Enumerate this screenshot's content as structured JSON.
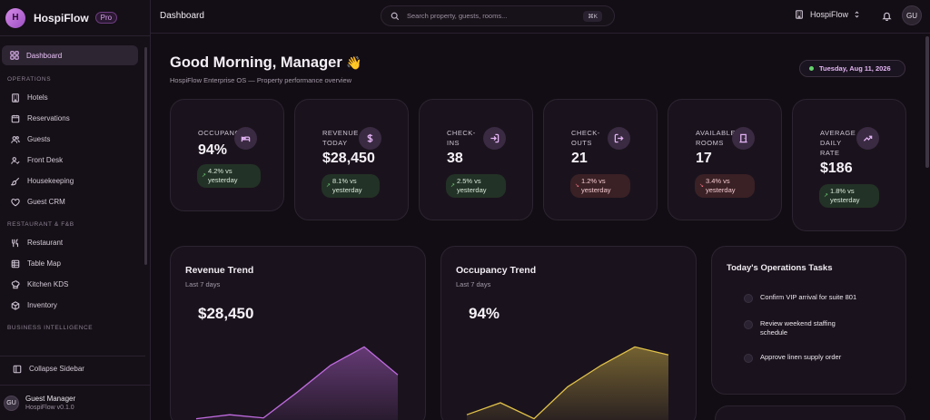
{
  "brand": {
    "logo_letter": "H",
    "name": "HospiFlow",
    "badge": "Pro"
  },
  "sidebar": {
    "active": {
      "label": "Dashboard",
      "icon": "grid-icon"
    },
    "sections": [
      {
        "title": "OPERATIONS",
        "items": [
          {
            "label": "Hotels",
            "icon": "building-icon"
          },
          {
            "label": "Reservations",
            "icon": "calendar-icon"
          },
          {
            "label": "Guests",
            "icon": "users-icon"
          },
          {
            "label": "Front Desk",
            "icon": "user-check-icon"
          },
          {
            "label": "Housekeeping",
            "icon": "brush-icon"
          },
          {
            "label": "Guest CRM",
            "icon": "heart-icon"
          }
        ]
      },
      {
        "title": "RESTAURANT & F&B",
        "items": [
          {
            "label": "Restaurant",
            "icon": "utensils-icon"
          },
          {
            "label": "Table Map",
            "icon": "table-icon"
          },
          {
            "label": "Kitchen KDS",
            "icon": "chef-hat-icon"
          },
          {
            "label": "Inventory",
            "icon": "box-icon"
          }
        ]
      },
      {
        "title": "BUSINESS INTELLIGENCE",
        "items": []
      }
    ],
    "collapse_label": "Collapse Sidebar",
    "user": {
      "initials": "GU",
      "name": "Guest Manager",
      "version": "HospiFlow v0.1.0"
    }
  },
  "topbar": {
    "title": "Dashboard",
    "search_placeholder": "Search property, guests, rooms...",
    "shortcut": "⌘K",
    "property": "HospiFlow",
    "avatar": "GU"
  },
  "header": {
    "greeting": "Good Morning, Manager",
    "greeting_emoji": "👋",
    "subtitle": "HospiFlow Enterprise OS — Property performance overview",
    "date": "Tuesday, Aug 11, 2026"
  },
  "kpis": [
    {
      "label": "OCCUPANCY",
      "value": "94%",
      "trend": "4.2% vs yesterday",
      "direction": "up",
      "icon": "bed-icon"
    },
    {
      "label": "REVENUE TODAY",
      "value": "$28,450",
      "trend": "8.1% vs yesterday",
      "direction": "up",
      "icon": "dollar-icon"
    },
    {
      "label": "CHECK-INS",
      "value": "38",
      "trend": "2.5% vs yesterday",
      "direction": "up",
      "icon": "login-icon"
    },
    {
      "label": "CHECK-OUTS",
      "value": "21",
      "trend": "1.2% vs yesterday",
      "direction": "down",
      "icon": "logout-icon"
    },
    {
      "label": "AVAILABLE ROOMS",
      "value": "17",
      "trend": "3.4% vs yesterday",
      "direction": "down",
      "icon": "door-icon"
    },
    {
      "label": "AVERAGE DAILY RATE",
      "value": "$186",
      "trend": "1.8% vs yesterday",
      "direction": "up",
      "icon": "trending-up-icon"
    }
  ],
  "revenue_trend": {
    "title": "Revenue Trend",
    "subtitle": "Last 7 days",
    "value": "$28,450",
    "color": "#c06be0"
  },
  "occupancy_trend": {
    "title": "Occupancy Trend",
    "subtitle": "Last 7 days",
    "value": "94%",
    "color": "#e2c24a"
  },
  "tasks": {
    "title": "Today's Operations Tasks",
    "items": [
      "Confirm VIP arrival for suite 801",
      "Review weekend staffing schedule",
      "Approve linen supply order"
    ]
  },
  "chart_data": [
    {
      "type": "area",
      "title": "Revenue Trend",
      "x": [
        1,
        2,
        3,
        4,
        5,
        6,
        7
      ],
      "values": [
        0.05,
        0.1,
        0.06,
        0.38,
        0.72,
        0.95,
        0.6
      ],
      "note_scale": "relative"
    },
    {
      "type": "area",
      "title": "Occupancy Trend",
      "x": [
        1,
        2,
        3,
        4,
        5,
        6,
        7
      ],
      "values": [
        0.1,
        0.25,
        0.05,
        0.45,
        0.72,
        0.95,
        0.85
      ],
      "note_scale": "relative"
    }
  ]
}
